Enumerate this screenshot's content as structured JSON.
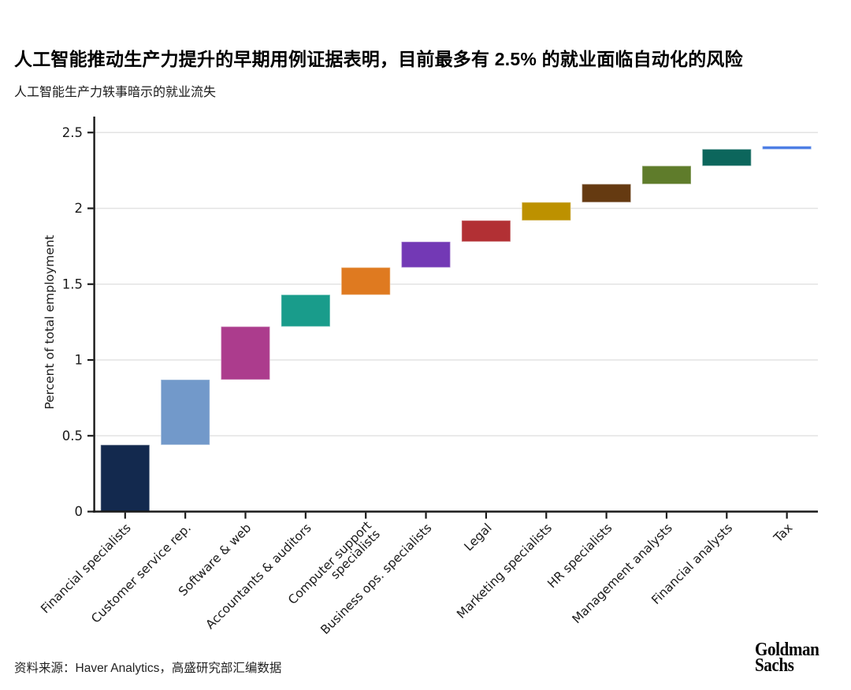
{
  "header": {
    "title": "人工智能推动生产力提升的早期用例证据表明，目前最多有 2.5% 的就业面临自动化的风险",
    "subtitle": "人工智能生产力轶事暗示的就业流失"
  },
  "footer": {
    "source": "资料来源：Haver Analytics，高盛研究部汇编数据",
    "logo_line1": "Goldman",
    "logo_line2": "Sachs"
  },
  "chart_data": {
    "type": "bar",
    "subtype": "waterfall",
    "title": "人工智能生产力轶事暗示的就业流失",
    "xlabel": "",
    "ylabel": "Percent of total employment",
    "ylim": [
      0,
      2.6
    ],
    "yticks": [
      "0",
      "0.5",
      "1",
      "1.5",
      "2",
      "2.5"
    ],
    "grid": "horizontal",
    "legend": "none",
    "categories": [
      "Financial specialists",
      "Customer service rep.",
      "Software & web",
      "Accountants & auditors",
      "Computer support specialists",
      "Business ops. specialists",
      "Legal",
      "Marketing specialists",
      "HR specialists",
      "Management analysts",
      "Financial analysts",
      "Tax"
    ],
    "bars": [
      {
        "label": "Financial specialists",
        "start": 0,
        "end": 0.44,
        "color": "#13294E"
      },
      {
        "label": "Customer service rep.",
        "start": 0.44,
        "end": 0.87,
        "color": "#7299CA"
      },
      {
        "label": "Software & web",
        "start": 0.87,
        "end": 1.22,
        "color": "#AC3C8D"
      },
      {
        "label": "Accountants & auditors",
        "start": 1.22,
        "end": 1.43,
        "color": "#199C8B"
      },
      {
        "label": "Computer support\nspecialists",
        "start": 1.43,
        "end": 1.61,
        "color": "#DF7A20"
      },
      {
        "label": "Business ops. specialists",
        "start": 1.61,
        "end": 1.78,
        "color": "#7339B5"
      },
      {
        "label": "Legal",
        "start": 1.78,
        "end": 1.92,
        "color": "#B23034"
      },
      {
        "label": "Marketing specialists",
        "start": 1.92,
        "end": 2.04,
        "color": "#BD9100"
      },
      {
        "label": "HR specialists",
        "start": 2.04,
        "end": 2.16,
        "color": "#653A11"
      },
      {
        "label": "Management analysts",
        "start": 2.16,
        "end": 2.28,
        "color": "#5F7C2B"
      },
      {
        "label": "Financial analysts",
        "start": 2.28,
        "end": 2.39,
        "color": "#0C665C"
      },
      {
        "label": "Tax",
        "start": 2.39,
        "end": 2.41,
        "color": "#4679E3"
      }
    ],
    "colors": {
      "axis": "#1a1a1a",
      "gridline": "#e3e3e3",
      "tick_label": "#1a1a1a"
    }
  }
}
